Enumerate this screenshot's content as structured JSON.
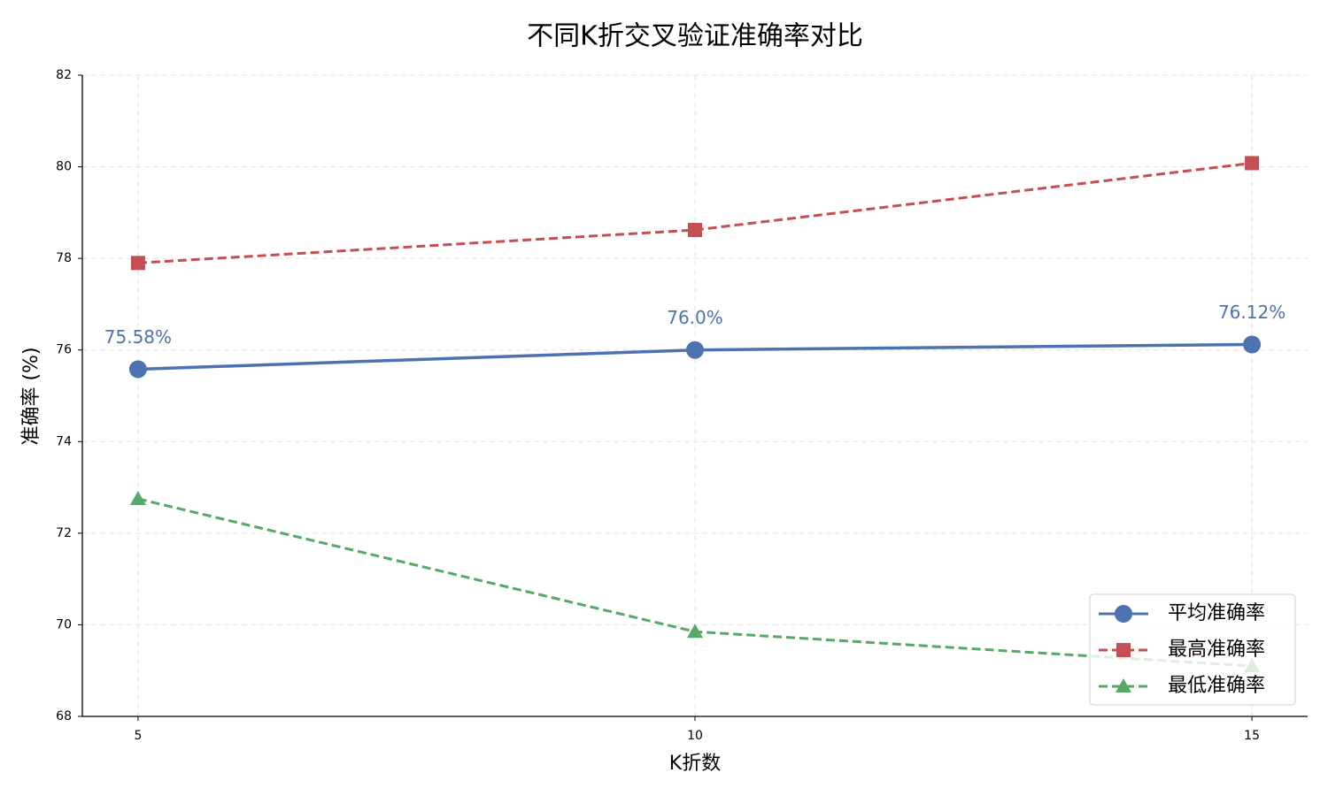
{
  "chart_data": {
    "type": "line",
    "title": "不同K折交叉验证准确率对比",
    "x_label": "K折数",
    "y_label": "准确率 (%)",
    "x": [
      5,
      10,
      15
    ],
    "xlim": [
      4.5,
      15.5
    ],
    "xticks": [
      5,
      10,
      15
    ],
    "ylim": [
      68,
      82
    ],
    "yticks": [
      68,
      70,
      72,
      74,
      76,
      78,
      80,
      82
    ],
    "grid": true,
    "legend": "lower right",
    "series": [
      {
        "name": "平均准确率",
        "color": "#4c72b0",
        "marker": "circle",
        "linestyle": "solid",
        "values": [
          75.58,
          76.0,
          76.12
        ],
        "value_labels": [
          "75.58%",
          "76.0%",
          "76.12%"
        ]
      },
      {
        "name": "最高准确率",
        "color": "#c44e52",
        "marker": "square",
        "linestyle": "dashed",
        "values": [
          77.9,
          78.62,
          80.08
        ]
      },
      {
        "name": "最低准确率",
        "color": "#55a868",
        "marker": "triangle",
        "linestyle": "dashed",
        "values": [
          72.75,
          69.85,
          69.1
        ]
      }
    ]
  }
}
